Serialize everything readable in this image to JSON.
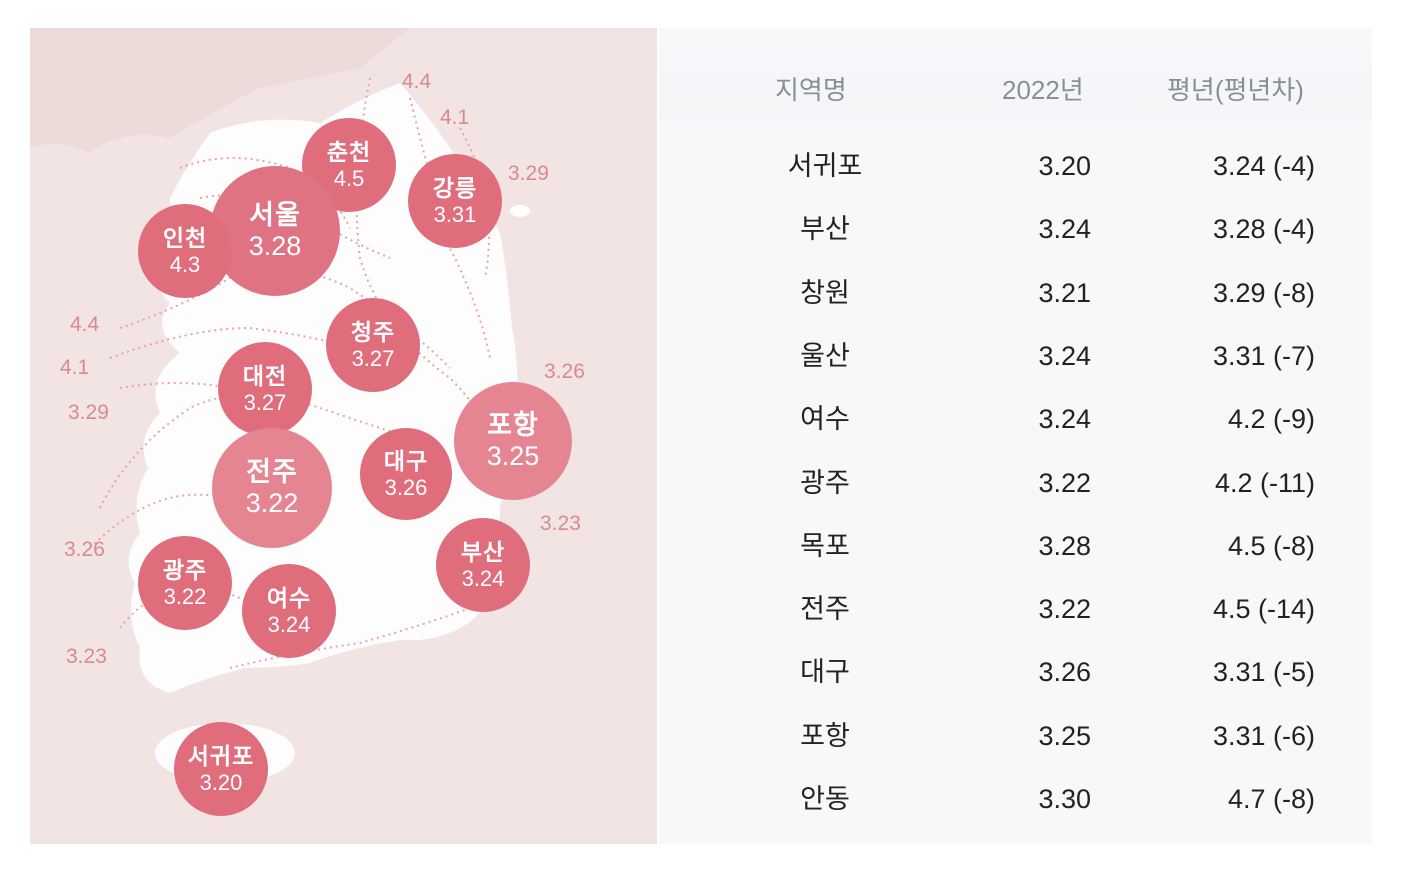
{
  "map": {
    "cities": [
      {
        "name": "춘천",
        "value": "4.5"
      },
      {
        "name": "강릉",
        "value": "3.31"
      },
      {
        "name": "서울",
        "value": "3.28"
      },
      {
        "name": "인천",
        "value": "4.3"
      },
      {
        "name": "청주",
        "value": "3.27"
      },
      {
        "name": "대전",
        "value": "3.27"
      },
      {
        "name": "포항",
        "value": "3.25"
      },
      {
        "name": "대구",
        "value": "3.26"
      },
      {
        "name": "전주",
        "value": "3.22"
      },
      {
        "name": "부산",
        "value": "3.24"
      },
      {
        "name": "광주",
        "value": "3.22"
      },
      {
        "name": "여수",
        "value": "3.24"
      },
      {
        "name": "서귀포",
        "value": "3.20"
      }
    ],
    "isolines": [
      "4.4",
      "4.1",
      "3.29",
      "4.4",
      "4.1",
      "3.29",
      "3.26",
      "3.23",
      "3.26",
      "3.23"
    ],
    "colors": {
      "bubble": "#df6d7c",
      "bubble_light": "#e58592",
      "land": "#ffffff",
      "sea": "#f1e4e2",
      "isoline": "#d98a8f"
    }
  },
  "table": {
    "headers": {
      "region": "지역명",
      "year": "2022년",
      "normal": "평년(평년차)"
    },
    "rows": [
      {
        "region": "서귀포",
        "year": "3.20",
        "normal": "3.24 (-4)"
      },
      {
        "region": "부산",
        "year": "3.24",
        "normal": "3.28 (-4)"
      },
      {
        "region": "창원",
        "year": "3.21",
        "normal": "3.29 (-8)"
      },
      {
        "region": "울산",
        "year": "3.24",
        "normal": "3.31 (-7)"
      },
      {
        "region": "여수",
        "year": "3.24",
        "normal": "4.2 (-9)"
      },
      {
        "region": "광주",
        "year": "3.22",
        "normal": "4.2 (-11)"
      },
      {
        "region": "목포",
        "year": "3.28",
        "normal": "4.5 (-8)"
      },
      {
        "region": "전주",
        "year": "3.22",
        "normal": "4.5 (-14)"
      },
      {
        "region": "대구",
        "year": "3.26",
        "normal": "3.31 (-5)"
      },
      {
        "region": "포항",
        "year": "3.25",
        "normal": "3.31 (-6)"
      },
      {
        "region": "안동",
        "year": "3.30",
        "normal": "4.7 (-8)"
      }
    ]
  }
}
